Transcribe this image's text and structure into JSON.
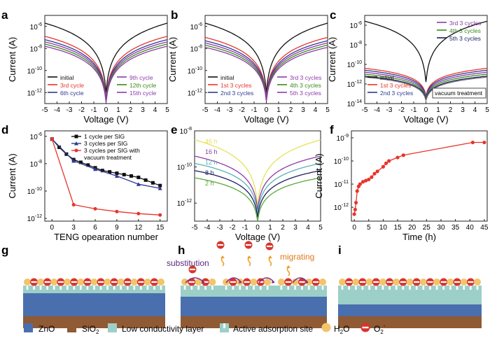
{
  "colors": {
    "black": "#111111",
    "red": "#e8352b",
    "blue": "#2f3a93",
    "purple": "#8e3aa8",
    "green": "#3a8a1a",
    "teal": "#5ab3b5",
    "navy": "#1b1f63",
    "olive": "#5aa93b",
    "yellow": "#e4e35a",
    "gray": "#777777",
    "zno": "#4a6fae",
    "sio2": "#8f5a34",
    "lcl": "#9ccfc8",
    "h2o": "#f2c46b",
    "o2_fill": "#d8342c",
    "arrow_purple": "#7a2e90",
    "migrate_orange": "#f0a02b"
  },
  "chart_data": [
    {
      "panel": "a",
      "type": "line",
      "xlabel": "Voltage (V)",
      "ylabel": "Current (A)",
      "xlim": [
        -5,
        5
      ],
      "xticks": [
        "-5",
        "-4",
        "-3",
        "-2",
        "-1",
        "0",
        "1",
        "2",
        "3",
        "4",
        "5"
      ],
      "ylim_log10": [
        -13,
        -5
      ],
      "yticks": [
        "10",
        "10",
        "10",
        "10",
        "10"
      ],
      "ytick_exponents": [
        "-6",
        "-8",
        "-10",
        "-12",
        ""
      ],
      "series": [
        {
          "name": "initial",
          "minlog": -12.0,
          "maxlog": -5.7,
          "color": "black"
        },
        {
          "name": "3rd cycle",
          "minlog": -12.5,
          "maxlog": -6.9,
          "color": "red"
        },
        {
          "name": "6th cycle",
          "minlog": -12.6,
          "maxlog": -7.2,
          "color": "blue"
        },
        {
          "name": "9th cycle",
          "minlog": -12.7,
          "maxlog": -7.4,
          "color": "purple"
        },
        {
          "name": "12th cycle",
          "minlog": -12.8,
          "maxlog": -7.6,
          "color": "green"
        },
        {
          "name": "15th cycle",
          "minlog": -12.9,
          "maxlog": -7.8,
          "color": "purple"
        }
      ],
      "legend_left": [
        "initial",
        "3rd cycle",
        "6th cycle"
      ],
      "legend_right": [
        "9th cycle",
        "12th cycle",
        "15th cycle"
      ]
    },
    {
      "panel": "b",
      "type": "line",
      "xlabel": "Voltage (V)",
      "ylabel": "Current (A)",
      "xlim": [
        -5,
        5
      ],
      "xticks": [
        "-5",
        "-4",
        "-3",
        "-2",
        "-1",
        "0",
        "1",
        "2",
        "3",
        "4",
        "5"
      ],
      "ylim_log10": [
        -13,
        -5
      ],
      "ytick_exponents": [
        "-6",
        "-8",
        "-10",
        "-12"
      ],
      "series": [
        {
          "name": "initial",
          "minlog": -12.0,
          "maxlog": -5.7,
          "color": "black"
        },
        {
          "name": "1st 3 cycles",
          "minlog": -12.4,
          "maxlog": -7.0,
          "color": "red"
        },
        {
          "name": "2nd 3 cycles",
          "minlog": -12.5,
          "maxlog": -7.3,
          "color": "blue"
        },
        {
          "name": "3rd 3 cycles",
          "minlog": -12.6,
          "maxlog": -7.5,
          "color": "purple"
        },
        {
          "name": "4th 3 cycles",
          "minlog": -12.7,
          "maxlog": -7.7,
          "color": "green"
        },
        {
          "name": "5th 3 cycles",
          "minlog": -12.8,
          "maxlog": -7.9,
          "color": "purple"
        }
      ],
      "legend_left": [
        "initial",
        "1st 3 cycles",
        "2nd 3 cycles"
      ],
      "legend_right": [
        "3rd 3 cycles",
        "4th 3 cycles",
        "5th 3 cycles"
      ]
    },
    {
      "panel": "c",
      "type": "line",
      "xlabel": "Voltage (V)",
      "ylabel": "Current (A)",
      "xlim": [
        -5,
        5
      ],
      "xticks": [
        "-5",
        "-4",
        "-3",
        "-2",
        "-1",
        "0",
        "1",
        "2",
        "3",
        "4",
        "5"
      ],
      "ylim_log10": [
        -14,
        -5
      ],
      "ytick_exponents": [
        "-6",
        "-8",
        "-10",
        "-12",
        "-14"
      ],
      "series": [
        {
          "name": "initial",
          "minlog": -11.8,
          "maxlog": -5.6,
          "color": "black"
        },
        {
          "name": "1st 3 cycles",
          "minlog": -13.2,
          "maxlog": -10.4,
          "color": "red"
        },
        {
          "name": "2nd 3 cycles",
          "minlog": -13.3,
          "maxlog": -10.6,
          "color": "blue"
        },
        {
          "name": "3rd 3 cycles",
          "minlog": -13.4,
          "maxlog": -10.8,
          "color": "purple"
        },
        {
          "name": "4th 3 cycles",
          "minlog": -13.5,
          "maxlog": -11.0,
          "color": "green"
        },
        {
          "name": "5th 3 cycles",
          "minlog": -13.6,
          "maxlog": -11.2,
          "color": "navy"
        },
        {
          "name": "vacuum treatment",
          "minlog": -13.7,
          "maxlog": -11.3,
          "color": "gray"
        }
      ],
      "legend_left": [
        "initial",
        "1st 3 cycles",
        "2nd 3 cycles"
      ],
      "legend_right": [
        "3rd 3 cycles",
        "4th 3 cycles",
        "5th 3 cycles"
      ],
      "legend_box": "vacuum treatment"
    },
    {
      "panel": "d",
      "type": "line",
      "xlabel": "TENG opearation number",
      "ylabel": "Current (A)",
      "xlim": [
        -1,
        16
      ],
      "xticks": [
        "0",
        "3",
        "6",
        "9",
        "12",
        "15"
      ],
      "ylim_log10": [
        -12.2,
        -5.6
      ],
      "ytick_exponents": [
        "-6",
        "-8",
        "-10",
        "-12"
      ],
      "series": [
        {
          "name": "1 cycle per SIG",
          "color": "black",
          "marker": "square",
          "x": [
            0,
            1,
            2,
            3,
            4,
            5,
            6,
            7,
            8,
            9,
            10,
            11,
            12,
            13,
            14,
            15
          ],
          "logy": [
            -6.2,
            -6.8,
            -7.3,
            -7.7,
            -7.9,
            -8.1,
            -8.3,
            -8.5,
            -8.6,
            -8.7,
            -8.8,
            -8.9,
            -9.0,
            -9.2,
            -9.4,
            -9.6
          ]
        },
        {
          "name": "3 cycles  per SIG",
          "color": "blue",
          "marker": "triangle",
          "x": [
            0,
            3,
            6,
            9,
            12,
            15
          ],
          "logy": [
            -6.2,
            -7.8,
            -8.4,
            -8.9,
            -9.5,
            -9.8
          ]
        },
        {
          "name": "3 cycles per SIG with vacuum treatment",
          "color": "red",
          "marker": "circle",
          "x": [
            0,
            3,
            6,
            9,
            12,
            15
          ],
          "logy": [
            -6.2,
            -11.0,
            -11.3,
            -11.5,
            -11.65,
            -11.75
          ]
        }
      ],
      "legend": [
        "1 cycle per SIG",
        "3 cycles  per SIG",
        "3 cycles per SIG with",
        "vacuum treatment"
      ]
    },
    {
      "panel": "e",
      "type": "line",
      "xlabel": "Voltage (V)",
      "ylabel": "",
      "xlim": [
        -5,
        5
      ],
      "xticks": [
        "-5",
        "-4",
        "-3",
        "-2",
        "-1",
        "0",
        "1",
        "2",
        "3",
        "4",
        "5"
      ],
      "ylim_log10": [
        -13,
        -8
      ],
      "ytick_exponents": [
        "-8",
        "-10",
        "-12"
      ],
      "series": [
        {
          "name": "46 h",
          "minlog": -12.2,
          "maxlog": -8.5,
          "color": "yellow"
        },
        {
          "name": "16 h",
          "minlog": -12.4,
          "maxlog": -9.4,
          "color": "purple"
        },
        {
          "name": "12 h",
          "minlog": -12.6,
          "maxlog": -9.8,
          "color": "teal"
        },
        {
          "name": "8 h",
          "minlog": -12.8,
          "maxlog": -10.2,
          "color": "navy"
        },
        {
          "name": "2 h",
          "minlog": -13.0,
          "maxlog": -10.6,
          "color": "olive"
        }
      ]
    },
    {
      "panel": "f",
      "type": "line",
      "xlabel": "Time (h)",
      "ylabel": "Current (A)",
      "xlim": [
        -1,
        46
      ],
      "xticks": [
        "0",
        "5",
        "10",
        "15",
        "20",
        "25",
        "30",
        "35",
        "40",
        "45"
      ],
      "ylim_log10": [
        -12.6,
        -8.7
      ],
      "ytick_exponents": [
        "-9",
        "-10",
        "-11",
        "-12"
      ],
      "series": [
        {
          "name": "",
          "color": "red",
          "x": [
            0,
            0.3,
            0.6,
            1,
            1.5,
            2,
            3,
            4,
            5,
            6,
            7,
            8,
            10,
            11,
            12,
            15,
            17,
            41,
            45
          ],
          "logy": [
            -12.3,
            -12.1,
            -11.8,
            -11.3,
            -11.1,
            -11.0,
            -10.9,
            -10.85,
            -10.8,
            -10.7,
            -10.55,
            -10.45,
            -10.25,
            -10.1,
            -10.0,
            -9.85,
            -9.75,
            -9.2,
            -9.2
          ]
        }
      ]
    }
  ],
  "panel_labels": [
    "a",
    "b",
    "c",
    "d",
    "e",
    "f",
    "g",
    "h",
    "i"
  ],
  "schematic": {
    "labels_h": [
      "substitution",
      "migrating"
    ]
  },
  "legend_bottom": {
    "items": [
      "ZnO",
      "SiO",
      "2",
      "Low conductivity layer",
      "Active adsorption site",
      "H",
      "2",
      "O",
      "O",
      "2",
      "-"
    ]
  }
}
